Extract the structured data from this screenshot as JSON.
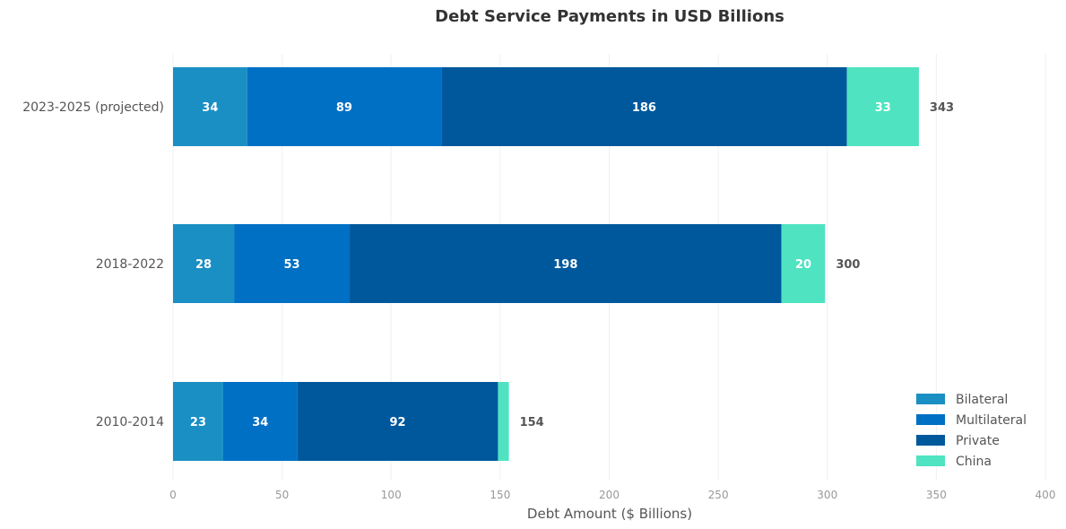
{
  "chart_data": {
    "type": "bar",
    "orientation": "horizontal",
    "stacked": true,
    "title": "Debt Service Payments in USD Billions",
    "xlabel": "Debt Amount ($ Billions)",
    "ylabel": "",
    "xlim": [
      0,
      400
    ],
    "xticks": [
      0,
      50,
      100,
      150,
      200,
      250,
      300,
      350,
      400
    ],
    "grid": "vertical",
    "legend_position": "bottom-right",
    "categories": [
      "2010-2014",
      "2018-2022",
      "2023-2025 (projected)"
    ],
    "series": [
      {
        "name": "Bilateral",
        "color": "#1a8fc4",
        "values": [
          23,
          28,
          34
        ],
        "labels": [
          "23",
          "28",
          "34"
        ]
      },
      {
        "name": "Multilateral",
        "color": "#0070c4",
        "values": [
          34,
          53,
          89
        ],
        "labels": [
          "34",
          "53",
          "89"
        ]
      },
      {
        "name": "Private",
        "color": "#00589c",
        "values": [
          92,
          198,
          186
        ],
        "labels": [
          "92",
          "198",
          "186"
        ]
      },
      {
        "name": "China",
        "color": "#4fe3c1",
        "values": [
          5,
          20,
          33
        ],
        "labels": [
          "",
          "20",
          "33"
        ]
      }
    ],
    "totals": [
      154,
      300,
      343
    ]
  }
}
